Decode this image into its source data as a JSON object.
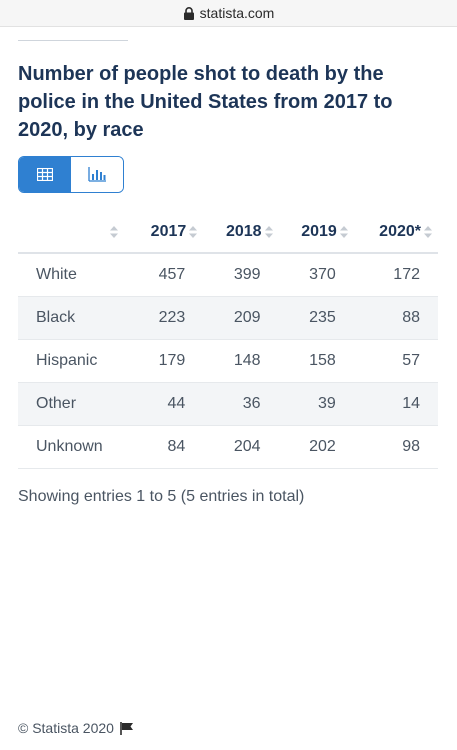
{
  "browser": {
    "url": "statista.com"
  },
  "title": "Number of people shot to death by the police in the United States from 2017 to 2020, by race",
  "table": {
    "columns": [
      "2017",
      "2018",
      "2019",
      "2020*"
    ],
    "rows": [
      {
        "label": "White",
        "values": [
          "457",
          "399",
          "370",
          "172"
        ]
      },
      {
        "label": "Black",
        "values": [
          "223",
          "209",
          "235",
          "88"
        ]
      },
      {
        "label": "Hispanic",
        "values": [
          "179",
          "148",
          "158",
          "57"
        ]
      },
      {
        "label": "Other",
        "values": [
          "44",
          "36",
          "39",
          "14"
        ]
      },
      {
        "label": "Unknown",
        "values": [
          "84",
          "204",
          "202",
          "98"
        ]
      }
    ]
  },
  "showing_text": "Showing entries 1 to 5 (5 entries in total)",
  "footer": {
    "copyright": "© Statista 2020"
  },
  "colors": {
    "accent": "#2f80d1",
    "title": "#1d3557"
  }
}
